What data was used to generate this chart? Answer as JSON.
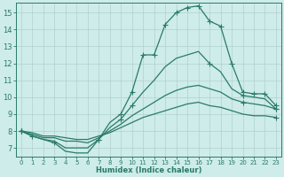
{
  "background_color": "#ceecea",
  "grid_color": "#b0d0ce",
  "line_color": "#2a7a6a",
  "xlabel": "Humidex (Indice chaleur)",
  "xlim": [
    -0.5,
    23.5
  ],
  "ylim": [
    6.5,
    15.6
  ],
  "xticks": [
    0,
    1,
    2,
    3,
    4,
    5,
    6,
    7,
    8,
    9,
    10,
    11,
    12,
    13,
    14,
    15,
    16,
    17,
    18,
    19,
    20,
    21,
    22,
    23
  ],
  "yticks": [
    7,
    8,
    9,
    10,
    11,
    12,
    13,
    14,
    15
  ],
  "curve1_x": [
    0,
    1,
    2,
    3,
    4,
    5,
    6,
    7,
    8,
    9,
    10,
    11,
    12,
    13,
    14,
    15,
    16,
    17,
    18,
    19,
    20,
    21,
    22,
    23
  ],
  "curve1_y": [
    8.0,
    7.7,
    7.5,
    7.3,
    6.8,
    6.7,
    6.7,
    7.5,
    8.5,
    9.0,
    10.3,
    12.5,
    12.5,
    14.3,
    15.0,
    15.3,
    15.4,
    14.5,
    14.2,
    12.0,
    10.3,
    10.2,
    10.2,
    9.5
  ],
  "curve1_mx": [
    0,
    1,
    3,
    7,
    9,
    10,
    11,
    12,
    13,
    14,
    15,
    16,
    17,
    18,
    19,
    20,
    21,
    22,
    23
  ],
  "curve1_my": [
    8.0,
    7.7,
    7.3,
    7.5,
    9.0,
    10.3,
    12.5,
    12.5,
    14.3,
    15.0,
    15.3,
    15.4,
    14.5,
    14.2,
    12.0,
    10.3,
    10.2,
    10.2,
    9.5
  ],
  "curve2_x": [
    0,
    1,
    2,
    3,
    4,
    5,
    6,
    7,
    8,
    9,
    10,
    11,
    12,
    13,
    14,
    15,
    16,
    17,
    18,
    19,
    20,
    21,
    22,
    23
  ],
  "curve2_y": [
    8.0,
    7.7,
    7.5,
    7.4,
    7.0,
    7.0,
    7.0,
    7.5,
    8.2,
    8.7,
    9.5,
    10.3,
    11.0,
    11.8,
    12.3,
    12.5,
    12.7,
    12.0,
    11.5,
    10.5,
    10.1,
    10.0,
    9.9,
    9.3
  ],
  "curve2_mx": [
    0,
    7,
    9,
    10,
    17,
    20,
    23
  ],
  "curve2_my": [
    8.0,
    7.5,
    8.7,
    9.5,
    12.0,
    10.1,
    9.3
  ],
  "curve3_x": [
    0,
    1,
    2,
    3,
    4,
    5,
    6,
    7,
    8,
    9,
    10,
    11,
    12,
    13,
    14,
    15,
    16,
    17,
    18,
    19,
    20,
    21,
    22,
    23
  ],
  "curve3_y": [
    8.0,
    7.8,
    7.6,
    7.6,
    7.4,
    7.4,
    7.3,
    7.6,
    8.0,
    8.4,
    8.9,
    9.3,
    9.7,
    10.1,
    10.4,
    10.6,
    10.7,
    10.5,
    10.3,
    9.9,
    9.7,
    9.6,
    9.5,
    9.3
  ],
  "curve3_mx": [
    0,
    20,
    23
  ],
  "curve3_my": [
    8.0,
    9.7,
    9.3
  ],
  "curve4_x": [
    0,
    1,
    2,
    3,
    4,
    5,
    6,
    7,
    8,
    9,
    10,
    11,
    12,
    13,
    14,
    15,
    16,
    17,
    18,
    19,
    20,
    21,
    22,
    23
  ],
  "curve4_y": [
    8.0,
    7.9,
    7.7,
    7.7,
    7.6,
    7.5,
    7.5,
    7.7,
    7.9,
    8.2,
    8.5,
    8.8,
    9.0,
    9.2,
    9.4,
    9.6,
    9.7,
    9.5,
    9.4,
    9.2,
    9.0,
    8.9,
    8.9,
    8.8
  ],
  "curve4_mx": [
    0,
    23
  ],
  "curve4_my": [
    8.0,
    8.8
  ]
}
